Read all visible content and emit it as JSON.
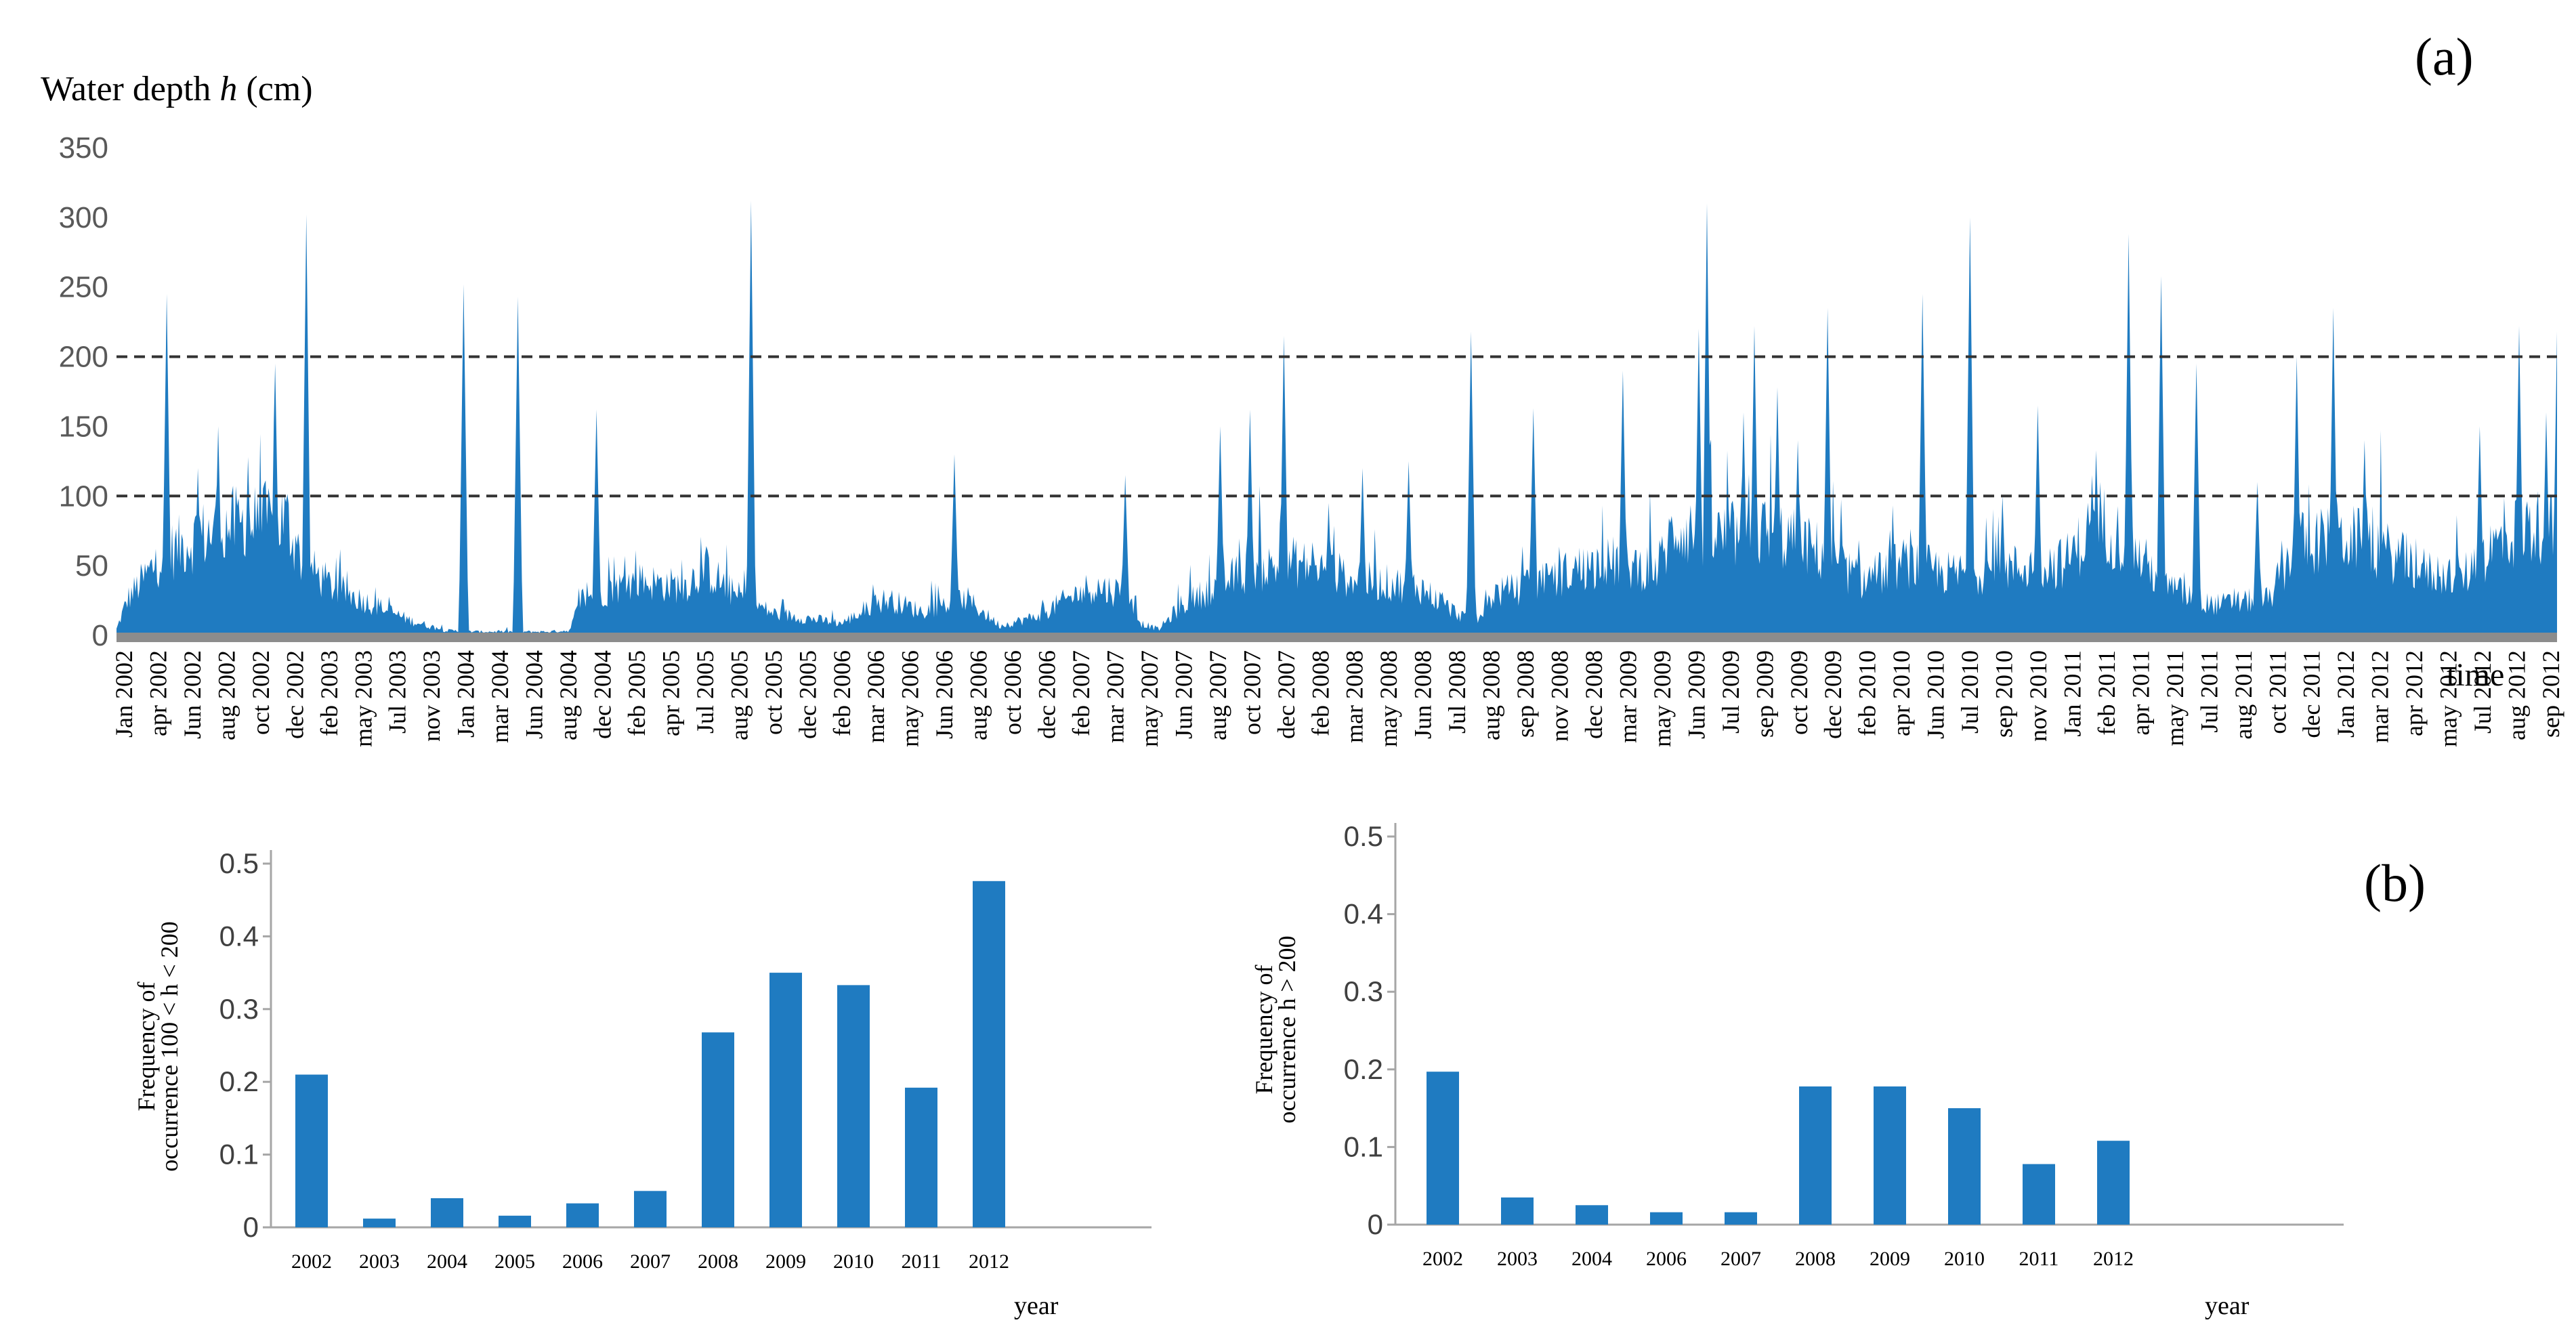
{
  "colors": {
    "bar": "#1f7bc1",
    "axis": "#a6a6a6",
    "baseline": "#8c8c8c",
    "dashed": "#333333",
    "text": "#000000"
  },
  "panel_labels": {
    "a": "(a)",
    "b": "(b)"
  },
  "chart_data": [
    {
      "id": "a",
      "type": "area",
      "title": "",
      "ylabel_prefix": "Water depth ",
      "ylabel_var": "h",
      "ylabel_suffix": " (cm)",
      "xlabel": "time",
      "ylim": [
        0,
        350
      ],
      "yticks": [
        0,
        50,
        100,
        150,
        200,
        250,
        300,
        350
      ],
      "thresholds": [
        100,
        200
      ],
      "x_tick_labels": [
        "Jan 2002",
        "apr 2002",
        "Jun 2002",
        "aug 2002",
        "oct 2002",
        "dec 2002",
        "feb 2003",
        "may 2003",
        "Jul 2003",
        "nov 2003",
        "Jan 2004",
        "mar 2004",
        "Jun 2004",
        "aug 2004",
        "dec 2004",
        "feb 2005",
        "apr 2005",
        "Jul 2005",
        "aug 2005",
        "oct 2005",
        "dec 2005",
        "feb 2006",
        "mar 2006",
        "may 2006",
        "Jun 2006",
        "aug 2006",
        "oct 2006",
        "dec 2006",
        "feb 2007",
        "mar 2007",
        "may 2007",
        "Jun 2007",
        "aug 2007",
        "oct 2007",
        "dec 2007",
        "feb 2008",
        "mar 2008",
        "may 2008",
        "Jun 2008",
        "Jul 2008",
        "aug 2008",
        "sep 2008",
        "nov 2008",
        "dec 2008",
        "mar 2009",
        "may 2009",
        "Jun 2009",
        "Jul 2009",
        "sep 2009",
        "oct 2009",
        "dec 2009",
        "feb 2010",
        "apr 2010",
        "Jun 2010",
        "Jul 2010",
        "sep 2010",
        "nov 2010",
        "Jan 2011",
        "feb 2011",
        "apr 2011",
        "may 2011",
        "Jul 2011",
        "aug 2011",
        "oct 2011",
        "dec 2011",
        "Jan 2012",
        "mar 2012",
        "apr 2012",
        "may 2012",
        "Jul 2012",
        "aug 2012",
        "sep 2012"
      ],
      "series": [
        {
          "name": "Water depth",
          "x_start": 2002.0,
          "x_end": 2012.77,
          "baseline_profile": [
            [
              2002.0,
              5
            ],
            [
              2002.05,
              30
            ],
            [
              2002.2,
              65
            ],
            [
              2002.35,
              80
            ],
            [
              2002.5,
              90
            ],
            [
              2002.75,
              95
            ],
            [
              2002.82,
              60
            ],
            [
              2002.95,
              40
            ],
            [
              2003.1,
              28
            ],
            [
              2003.3,
              12
            ],
            [
              2003.45,
              4
            ],
            [
              2003.6,
              3
            ],
            [
              2003.75,
              3
            ],
            [
              2003.9,
              3
            ],
            [
              2004.0,
              4
            ],
            [
              2004.05,
              30
            ],
            [
              2004.3,
              45
            ],
            [
              2004.5,
              40
            ],
            [
              2004.6,
              55
            ],
            [
              2004.72,
              35
            ],
            [
              2004.9,
              18
            ],
            [
              2005.2,
              10
            ],
            [
              2005.4,
              30
            ],
            [
              2005.55,
              20
            ],
            [
              2005.75,
              30
            ],
            [
              2005.9,
              8
            ],
            [
              2006.05,
              15
            ],
            [
              2006.3,
              40
            ],
            [
              2006.45,
              35
            ],
            [
              2006.52,
              10
            ],
            [
              2006.6,
              5
            ],
            [
              2006.7,
              25
            ],
            [
              2006.8,
              35
            ],
            [
              2006.95,
              50
            ],
            [
              2007.2,
              60
            ],
            [
              2007.5,
              45
            ],
            [
              2007.75,
              40
            ],
            [
              2007.9,
              20
            ],
            [
              2008.0,
              10
            ],
            [
              2008.08,
              35
            ],
            [
              2008.25,
              40
            ],
            [
              2008.45,
              55
            ],
            [
              2008.6,
              60
            ],
            [
              2008.8,
              55
            ],
            [
              2008.88,
              90
            ],
            [
              2009.05,
              80
            ],
            [
              2009.3,
              85
            ],
            [
              2009.5,
              70
            ],
            [
              2009.7,
              45
            ],
            [
              2009.9,
              60
            ],
            [
              2010.1,
              50
            ],
            [
              2010.35,
              55
            ],
            [
              2010.6,
              60
            ],
            [
              2010.75,
              95
            ],
            [
              2010.9,
              70
            ],
            [
              2011.05,
              40
            ],
            [
              2011.25,
              25
            ],
            [
              2011.5,
              30
            ],
            [
              2011.62,
              75
            ],
            [
              2011.85,
              80
            ],
            [
              2012.0,
              70
            ],
            [
              2012.2,
              52
            ],
            [
              2012.35,
              48
            ],
            [
              2012.5,
              75
            ],
            [
              2012.65,
              90
            ],
            [
              2012.77,
              85
            ]
          ],
          "peaks": [
            [
              2002.22,
              245
            ],
            [
              2002.36,
              120
            ],
            [
              2002.45,
              150
            ],
            [
              2002.58,
              128
            ],
            [
              2002.7,
              195
            ],
            [
              2002.84,
              302
            ],
            [
              2003.53,
              252
            ],
            [
              2003.77,
              243
            ],
            [
              2004.12,
              162
            ],
            [
              2004.8,
              312
            ],
            [
              2005.7,
              130
            ],
            [
              2006.45,
              115
            ],
            [
              2006.87,
              150
            ],
            [
              2007.0,
              162
            ],
            [
              2007.15,
              215
            ],
            [
              2007.35,
              95
            ],
            [
              2007.5,
              120
            ],
            [
              2007.7,
              125
            ],
            [
              2007.98,
              218
            ],
            [
              2008.25,
              163
            ],
            [
              2008.65,
              190
            ],
            [
              2008.98,
              220
            ],
            [
              2009.02,
              310
            ],
            [
              2009.18,
              160
            ],
            [
              2009.23,
              222
            ],
            [
              2009.33,
              178
            ],
            [
              2009.42,
              140
            ],
            [
              2009.55,
              235
            ],
            [
              2009.97,
              245
            ],
            [
              2010.18,
              300
            ],
            [
              2010.32,
              100
            ],
            [
              2010.48,
              165
            ],
            [
              2010.72,
              115
            ],
            [
              2010.88,
              288
            ],
            [
              2011.02,
              258
            ],
            [
              2011.18,
              195
            ],
            [
              2011.45,
              110
            ],
            [
              2011.62,
              200
            ],
            [
              2011.78,
              235
            ],
            [
              2011.92,
              140
            ],
            [
              2012.43,
              150
            ],
            [
              2012.6,
              222
            ],
            [
              2012.72,
              160
            ],
            [
              2012.77,
              218
            ]
          ]
        }
      ]
    },
    {
      "id": "b1",
      "type": "bar",
      "title": "",
      "ylabel_line1": "Frequency of",
      "ylabel_line2": "occurrence 100 < h < 200",
      "xlabel": "year",
      "ylim": [
        0,
        0.5
      ],
      "yticks": [
        "0",
        "0.1",
        "0.2",
        "0.3",
        "0.4",
        "0.5"
      ],
      "categories": [
        "2002",
        "2003",
        "2004",
        "2005",
        "2006",
        "2007",
        "2008",
        "2009",
        "2010",
        "2011",
        "2012"
      ],
      "values": [
        0.21,
        0.012,
        0.04,
        0.016,
        0.033,
        0.05,
        0.268,
        0.35,
        0.333,
        0.192,
        0.476
      ]
    },
    {
      "id": "b2",
      "type": "bar",
      "title": "",
      "ylabel_line1": "Frequency of",
      "ylabel_line2": "occurrence  h > 200",
      "xlabel": "year",
      "ylim": [
        0,
        0.5
      ],
      "yticks": [
        "0",
        "0.1",
        "0.2",
        "0.3",
        "0.4",
        "0.5"
      ],
      "categories": [
        "2002",
        "2003",
        "2004",
        "2006",
        "2007",
        "2008",
        "2009",
        "2010",
        "2011",
        "2012"
      ],
      "values": [
        0.197,
        0.035,
        0.025,
        0.016,
        0.016,
        0.178,
        0.178,
        0.15,
        0.078,
        0.108
      ]
    }
  ]
}
